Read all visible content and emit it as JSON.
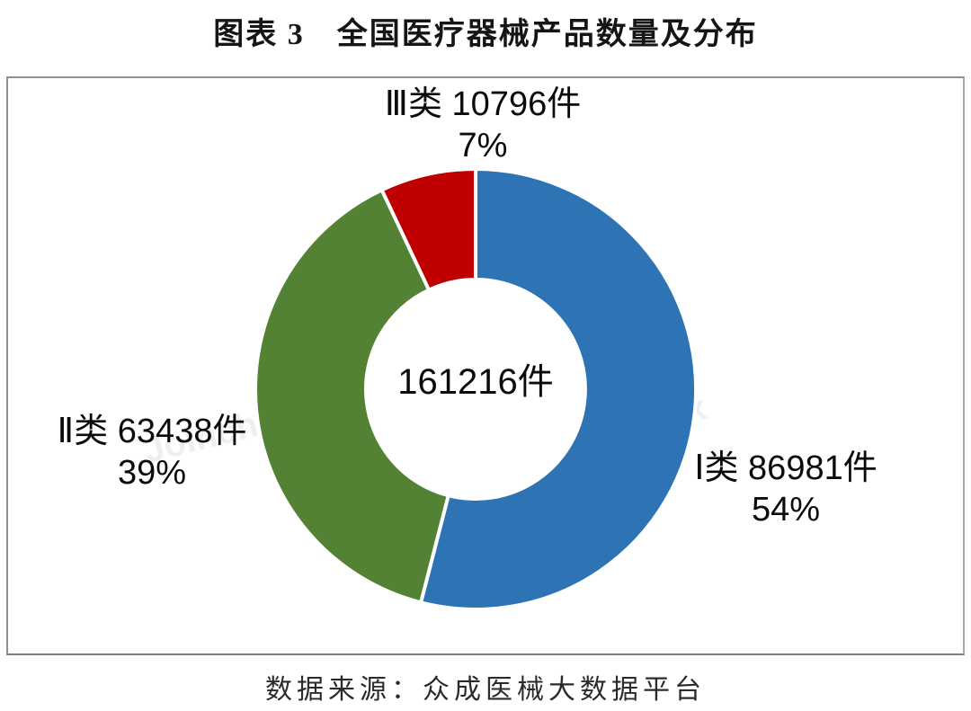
{
  "page": {
    "title": "图表 3　全国医疗器械产品数量及分布",
    "source": "数据来源：众成医械大数据平台"
  },
  "chart_data": {
    "type": "donut",
    "title": "图表 3　全国医疗器械产品数量及分布",
    "source": "数据来源：众成医械大数据平台",
    "center_label": "161216件",
    "total_value": 161216,
    "unit": "件",
    "start_angle_deg": 0,
    "direction": "clockwise",
    "legend_position": "callout-labels",
    "segments": [
      {
        "key": "class1",
        "name": "Ⅰ类",
        "value": 86981,
        "pct": 54,
        "color": "#2E74B5",
        "label_line1": "Ⅰ类 86981件",
        "label_line2": "54%",
        "label_side": "right"
      },
      {
        "key": "class2",
        "name": "Ⅱ类",
        "value": 63438,
        "pct": 39,
        "color": "#548235",
        "label_line1": "Ⅱ类 63438件",
        "label_line2": "39%",
        "label_side": "left"
      },
      {
        "key": "class3",
        "name": "Ⅲ类",
        "value": 10796,
        "pct": 7,
        "color": "#C00000",
        "label_line1": "Ⅲ类 10796件",
        "label_line2": "7%",
        "label_side": "top"
      }
    ],
    "segment_gap_color": "#ffffff"
  },
  "watermark": {
    "left_fragment": "Joinch",
    "right_fragment": "ain ucx"
  }
}
